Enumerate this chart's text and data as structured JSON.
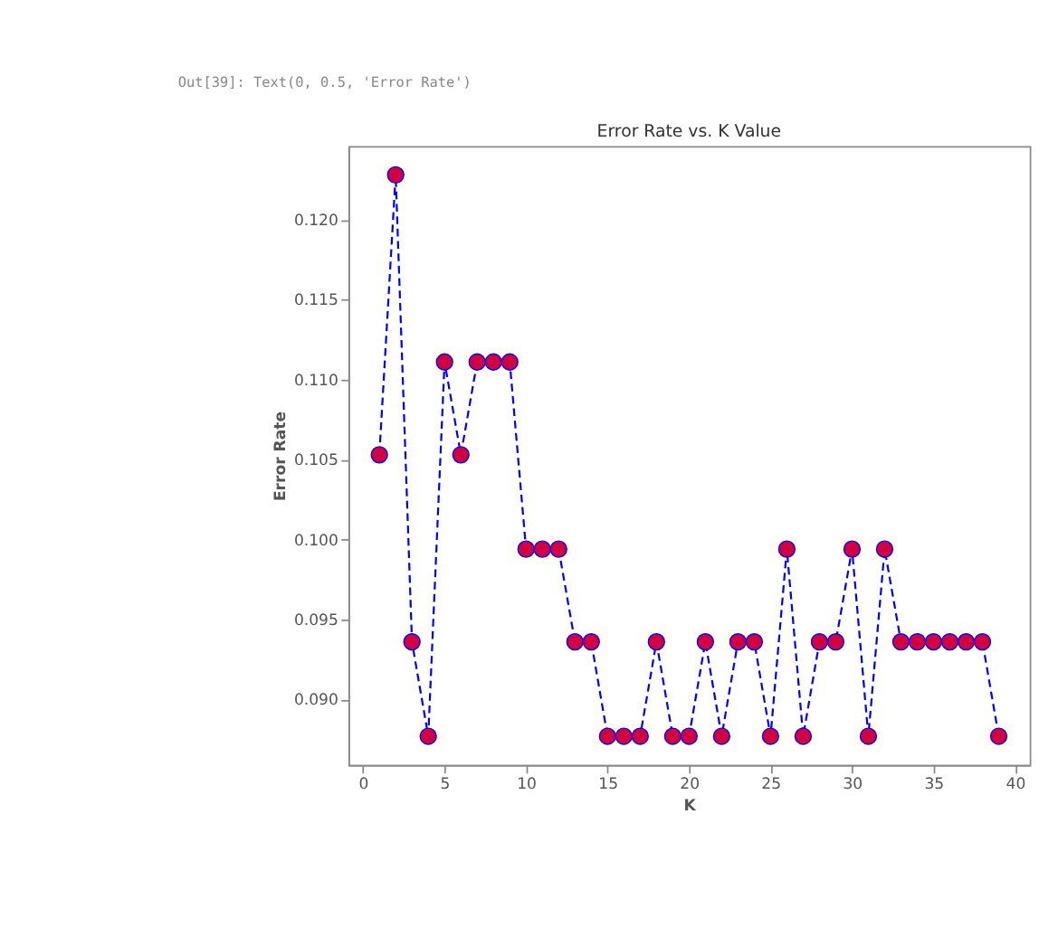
{
  "chart_data": {
    "type": "line",
    "title": "Error Rate vs. K Value",
    "xlabel": "K",
    "ylabel": "Error Rate",
    "annotations": [
      "Out[39]: Text(0, 0.5, 'Error Rate')"
    ],
    "x": [
      1,
      2,
      3,
      4,
      5,
      6,
      7,
      8,
      9,
      10,
      11,
      12,
      13,
      14,
      15,
      16,
      17,
      18,
      19,
      20,
      21,
      22,
      23,
      24,
      25,
      26,
      27,
      28,
      29,
      30,
      31,
      32,
      33,
      34,
      35,
      36,
      37,
      38,
      39
    ],
    "series": [
      {
        "color": "#0000ff",
        "colors": [
          "#d2003f",
          "#d2003f",
          "#d2003f",
          "#d2003f",
          "#d2003f",
          "#d2003f",
          "#d2003f",
          "#d2003f",
          "#d2003f",
          "#d2003f",
          "#d2003f",
          "#d2003f",
          "#d2003f",
          "#d2003f",
          "#d2003f",
          "#d2003f",
          "#d2003f",
          "#d2003f",
          "#d2003f",
          "#d2003f",
          "#d2003f",
          "#d2003f",
          "#d2003f",
          "#d2003f",
          "#d2003f",
          "#d2003f",
          "#d2003f",
          "#d2003f",
          "#d2003f",
          "#d2003f",
          "#d2003f",
          "#d2003f",
          "#d2003f",
          "#d2003f",
          "#d2003f",
          "#d2003f",
          "#d2003f",
          "#d2003f",
          "#d2003f"
        ],
        "values": [
          0.1053,
          0.1228,
          0.0936,
          0.0877,
          0.1111,
          0.1053,
          0.1111,
          0.1111,
          0.1111,
          0.0994,
          0.0994,
          0.0994,
          0.0936,
          0.0936,
          0.0877,
          0.0877,
          0.0877,
          0.0936,
          0.0877,
          0.0877,
          0.0936,
          0.0877,
          0.0936,
          0.0936,
          0.0877,
          0.0994,
          0.0877,
          0.0936,
          0.0936,
          0.0994,
          0.0877,
          0.0994,
          0.0936,
          0.0936,
          0.0936,
          0.0936,
          0.0936,
          0.0936,
          0.0877
        ]
      }
    ],
    "xlim": [
      -0.9,
      40.9
    ],
    "xticks": [
      0,
      5,
      10,
      15,
      20,
      25,
      30,
      35,
      40
    ],
    "ylim": [
      0.0859,
      0.1246
    ],
    "yticks": [
      {
        "value": 0.09,
        "label": "0.090"
      },
      0.095,
      {
        "value": 0.1,
        "label": "0.100"
      },
      0.105,
      {
        "value": 0.11,
        "label": "0.110"
      },
      0.115,
      {
        "value": 0.12,
        "label": "0.120"
      }
    ],
    "grid": false,
    "marker": "circle",
    "line_style": "dashed"
  }
}
